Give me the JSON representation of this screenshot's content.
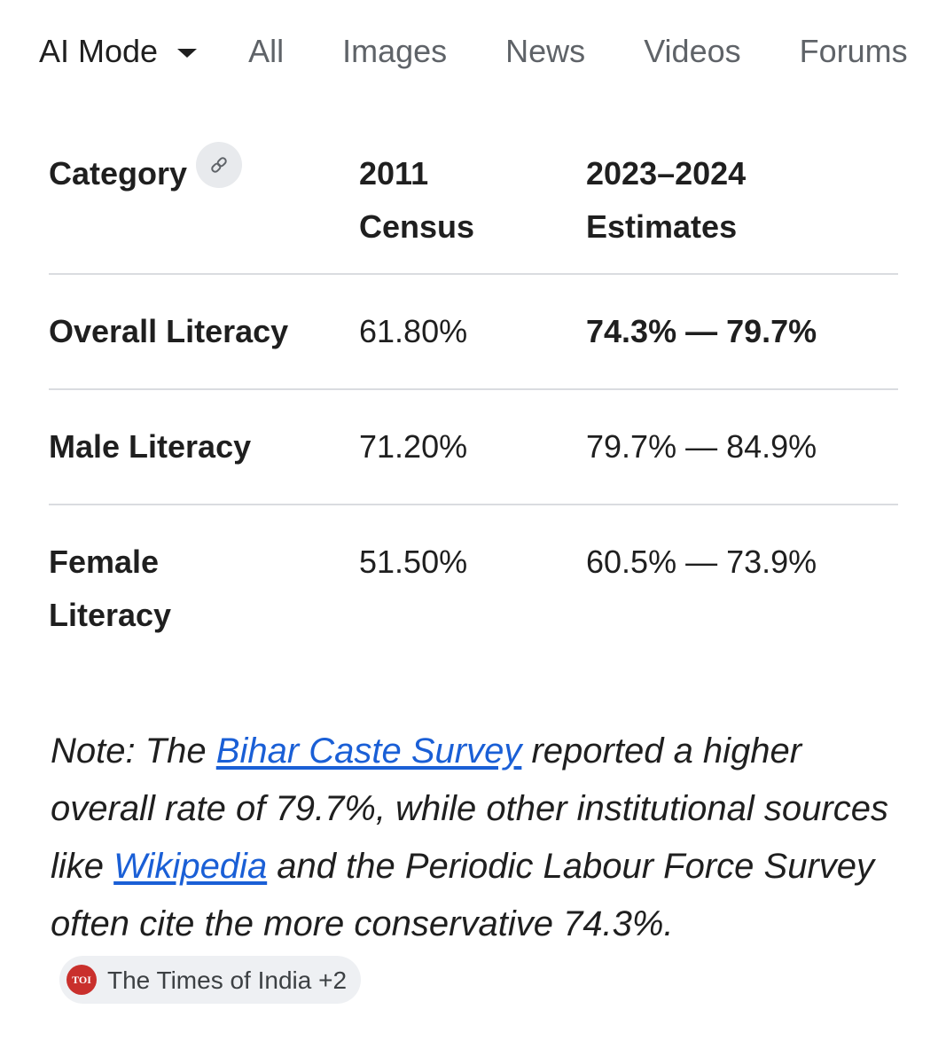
{
  "nav": {
    "tabs": [
      {
        "label": "AI Mode"
      },
      {
        "label": "All"
      },
      {
        "label": "Images"
      },
      {
        "label": "News"
      },
      {
        "label": "Videos"
      },
      {
        "label": "Forums"
      }
    ]
  },
  "table": {
    "headers": [
      "Category",
      "2011 Census",
      "2023–2024 Estimates"
    ],
    "rows": [
      {
        "category": "Overall Literacy",
        "census_2011": "61.80%",
        "estimate": "74.3% — 79.7%"
      },
      {
        "category": "Male Literacy",
        "census_2011": "71.20%",
        "estimate": "79.7% — 84.9%"
      },
      {
        "category": "Female Literacy",
        "census_2011": "51.50%",
        "estimate": "60.5% — 73.9%"
      }
    ]
  },
  "note": {
    "part1": "Note: The ",
    "link1": "Bihar Caste Survey",
    "part2": " reported a higher overall rate of 79.7%, while other institutional sources like ",
    "link2": "Wikipedia",
    "part3": " and the Periodic Labour Force Survey often cite the more conservative 74.3%.",
    "source_chip": {
      "logo_text": "TOI",
      "label": "The Times of India +2"
    }
  },
  "colors": {
    "link": "#1a5fd6",
    "divider": "#dadce0",
    "muted_tab": "#5f6368",
    "toi_red": "#c9302c"
  },
  "icons": {
    "dropdown": "caret-down-icon",
    "link": "link-icon"
  }
}
